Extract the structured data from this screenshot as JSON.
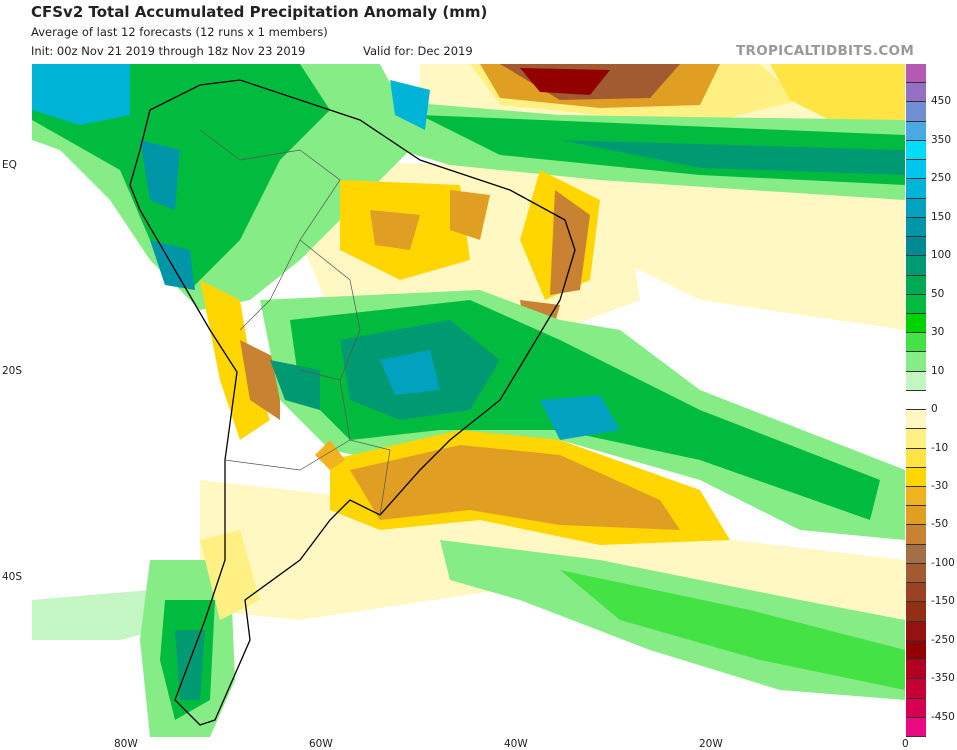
{
  "header": {
    "title": "CFSv2 Total Accumulated Precipitation Anomaly (mm)",
    "subtitle": "Average of last 12 forecasts (12 runs x 1 members)",
    "init": "Init: 00z Nov 21 2019 through 18z Nov 23 2019",
    "valid": "Valid for: Dec 2019",
    "watermark": "TROPICALTIDBITS.COM"
  },
  "axes": {
    "lat_labels": [
      "EQ",
      "20S",
      "40S"
    ],
    "lon_labels": [
      "80W",
      "60W",
      "40W",
      "20W",
      "0"
    ]
  },
  "colorbar": {
    "colors": [
      "#b45ab2",
      "#9370c4",
      "#6f8fd2",
      "#4aa8e2",
      "#00dcfa",
      "#00c6ee",
      "#00b4d8",
      "#00a2c0",
      "#0096a8",
      "#008a92",
      "#009a72",
      "#00aa52",
      "#00bb3e",
      "#00d200",
      "#44e244",
      "#86ec86",
      "#c4f6c4",
      "#ffffff",
      "#fff8c2",
      "#fff084",
      "#ffe444",
      "#ffd600",
      "#f0b21e",
      "#e09e22",
      "#c88232",
      "#a27044",
      "#a25a30",
      "#9a4222",
      "#923014",
      "#941212",
      "#920000",
      "#b20022",
      "#c60034",
      "#d60052",
      "#ea0a84"
    ],
    "labels": [
      {
        "text": "450",
        "after": 2
      },
      {
        "text": "350",
        "after": 4
      },
      {
        "text": "250",
        "after": 6
      },
      {
        "text": "150",
        "after": 8
      },
      {
        "text": "100",
        "after": 10
      },
      {
        "text": "50",
        "after": 12
      },
      {
        "text": "30",
        "after": 14
      },
      {
        "text": "10",
        "after": 16
      },
      {
        "text": "0",
        "after": 18
      },
      {
        "text": "-10",
        "after": 20
      },
      {
        "text": "-30",
        "after": 22
      },
      {
        "text": "-50",
        "after": 24
      },
      {
        "text": "-100",
        "after": 26
      },
      {
        "text": "-150",
        "after": 28
      },
      {
        "text": "-250",
        "after": 30
      },
      {
        "text": "-350",
        "after": 32
      },
      {
        "text": "-450",
        "after": 34
      }
    ]
  }
}
